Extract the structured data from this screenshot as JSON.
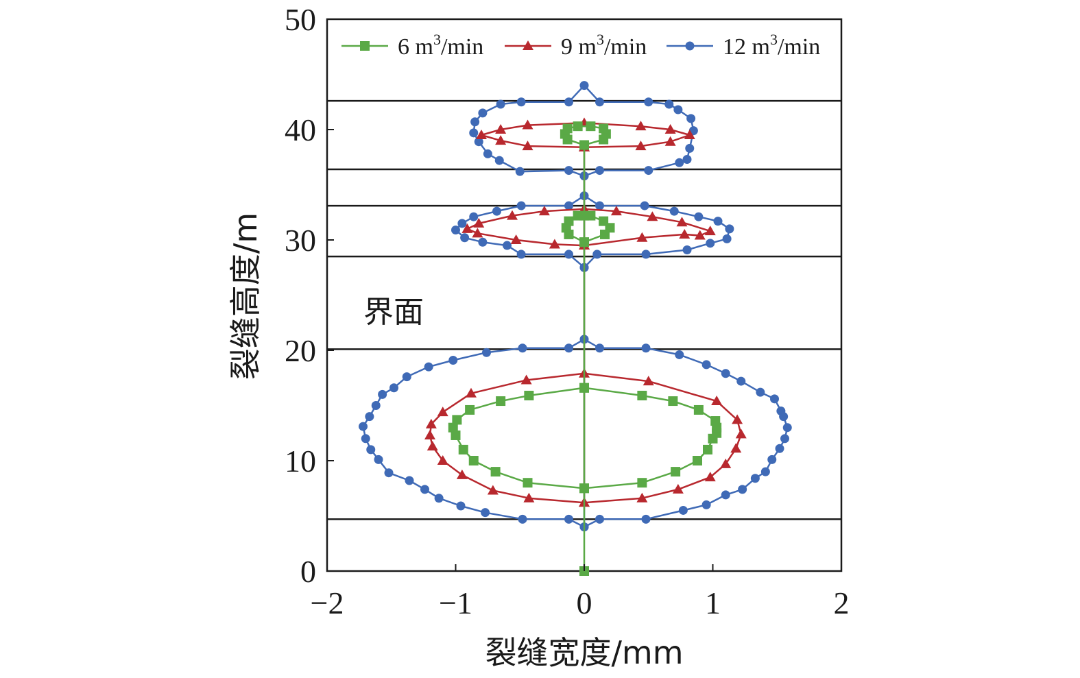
{
  "chart_data": {
    "type": "line",
    "xlabel": "裂缝宽度/mm",
    "ylabel": "裂缝高度/m",
    "xlim": [
      -2,
      2
    ],
    "ylim": [
      0,
      50
    ],
    "x_ticks": [
      "−2",
      "−1",
      "0",
      "1",
      "2"
    ],
    "y_ticks": [
      "0",
      "10",
      "20",
      "30",
      "40",
      "50"
    ],
    "x_tick_values": [
      -2,
      -1,
      0,
      1,
      2
    ],
    "y_tick_values": [
      0,
      10,
      20,
      30,
      40,
      50
    ],
    "grid": false,
    "legend_position": "top",
    "annotation": "界面",
    "interfaces": [
      4.7,
      20.1,
      28.5,
      33.1,
      36.4,
      42.6
    ],
    "series": [
      {
        "name": "6 m³/min",
        "legend_main": "6 m",
        "legend_sup": "3",
        "legend_tail": "/min",
        "color": "#5aa946",
        "marker": "square",
        "points": [
          [
            0,
            0
          ],
          [
            0,
            7.5
          ],
          [
            0.45,
            8.0
          ],
          [
            0.71,
            9.0
          ],
          [
            0.88,
            10.0
          ],
          [
            0.96,
            11.0
          ],
          [
            1.0,
            12.0
          ],
          [
            1.03,
            12.5
          ],
          [
            1.03,
            13.0
          ],
          [
            1.02,
            13.6
          ],
          [
            0.89,
            14.6
          ],
          [
            0.69,
            15.4
          ],
          [
            0.45,
            15.9
          ],
          [
            0,
            16.6
          ],
          [
            -0.43,
            15.9
          ],
          [
            -0.65,
            15.4
          ],
          [
            -0.89,
            14.6
          ],
          [
            -0.99,
            13.7
          ],
          [
            -1.02,
            13.0
          ],
          [
            -1.0,
            12.3
          ],
          [
            -0.94,
            11.0
          ],
          [
            -0.86,
            10.0
          ],
          [
            -0.69,
            9.0
          ],
          [
            -0.44,
            8.0
          ],
          [
            0,
            7.5
          ],
          [
            0,
            16.6
          ],
          [
            0,
            29.8
          ],
          [
            0.16,
            30.5
          ],
          [
            0.2,
            31.1
          ],
          [
            0.15,
            31.7
          ],
          [
            0.05,
            32.2
          ],
          [
            -0.05,
            32.2
          ],
          [
            -0.12,
            31.7
          ],
          [
            -0.14,
            31.1
          ],
          [
            -0.12,
            30.5
          ],
          [
            0,
            29.8
          ],
          [
            0,
            32.2
          ],
          [
            0,
            38.6
          ],
          [
            0.15,
            39.1
          ],
          [
            0.17,
            39.6
          ],
          [
            0.15,
            40.1
          ],
          [
            0.05,
            40.3
          ],
          [
            -0.05,
            40.3
          ],
          [
            -0.13,
            40.1
          ],
          [
            -0.15,
            39.6
          ],
          [
            -0.13,
            39.1
          ],
          [
            0,
            38.6
          ]
        ]
      },
      {
        "name": "9 m³/min",
        "legend_main": "9 m",
        "legend_sup": "3",
        "legend_tail": "/min",
        "color": "#b8282e",
        "marker": "triangle",
        "points": [
          [
            0,
            6.2
          ],
          [
            0.45,
            6.6
          ],
          [
            0.73,
            7.4
          ],
          [
            0.98,
            8.5
          ],
          [
            1.1,
            9.7
          ],
          [
            1.18,
            11.1
          ],
          [
            1.22,
            12.4
          ],
          [
            1.19,
            13.7
          ],
          [
            1.03,
            15.4
          ],
          [
            0.5,
            17.2
          ],
          [
            0,
            17.9
          ],
          [
            -0.45,
            17.3
          ],
          [
            -0.88,
            16.1
          ],
          [
            -1.1,
            14.4
          ],
          [
            -1.19,
            13.3
          ],
          [
            -1.2,
            12.3
          ],
          [
            -1.18,
            11.3
          ],
          [
            -1.1,
            10.0
          ],
          [
            -0.95,
            8.7
          ],
          [
            -0.71,
            7.3
          ],
          [
            -0.43,
            6.6
          ],
          [
            0,
            6.2
          ],
          [
            0,
            29.5
          ],
          [
            0.45,
            30.2
          ],
          [
            0.78,
            30.5
          ],
          [
            0.9,
            30.4
          ],
          [
            0.98,
            30.8
          ],
          [
            0.76,
            31.6
          ],
          [
            0.53,
            32.1
          ],
          [
            0.25,
            32.6
          ],
          [
            0,
            32.8
          ],
          [
            -0.31,
            32.6
          ],
          [
            -0.56,
            32.2
          ],
          [
            -0.82,
            31.5
          ],
          [
            -0.91,
            31.0
          ],
          [
            -0.83,
            30.6
          ],
          [
            -0.53,
            30.0
          ],
          [
            -0.23,
            29.6
          ],
          [
            0,
            29.5
          ],
          [
            0,
            38.4
          ],
          [
            0.44,
            38.5
          ],
          [
            0.67,
            38.9
          ],
          [
            0.82,
            39.5
          ],
          [
            0.67,
            40.0
          ],
          [
            0.44,
            40.3
          ],
          [
            0,
            40.6
          ],
          [
            -0.44,
            40.4
          ],
          [
            -0.65,
            40.0
          ],
          [
            -0.8,
            39.5
          ],
          [
            -0.65,
            39.0
          ],
          [
            -0.44,
            38.5
          ],
          [
            0,
            38.4
          ]
        ]
      },
      {
        "name": "12 m³/min",
        "legend_main": "12 m",
        "legend_sup": "3",
        "legend_tail": "/min",
        "color": "#3f6ab6",
        "marker": "circle",
        "points": [
          [
            0,
            4.0
          ],
          [
            0.12,
            4.7
          ],
          [
            0.48,
            4.7
          ],
          [
            0.77,
            5.5
          ],
          [
            0.95,
            6.0
          ],
          [
            1.1,
            6.9
          ],
          [
            1.23,
            7.4
          ],
          [
            1.33,
            8.4
          ],
          [
            1.41,
            9.0
          ],
          [
            1.46,
            10.1
          ],
          [
            1.52,
            11.1
          ],
          [
            1.56,
            12.0
          ],
          [
            1.58,
            13.0
          ],
          [
            1.55,
            14.0
          ],
          [
            1.53,
            14.5
          ],
          [
            1.48,
            15.6
          ],
          [
            1.37,
            16.2
          ],
          [
            1.22,
            17.2
          ],
          [
            1.1,
            17.9
          ],
          [
            0.95,
            18.7
          ],
          [
            0.74,
            19.6
          ],
          [
            0.48,
            20.2
          ],
          [
            0.12,
            20.2
          ],
          [
            0,
            21.0
          ],
          [
            -0.12,
            20.2
          ],
          [
            -0.48,
            20.2
          ],
          [
            -0.76,
            19.8
          ],
          [
            -1.02,
            19.1
          ],
          [
            -1.21,
            18.5
          ],
          [
            -1.38,
            17.6
          ],
          [
            -1.48,
            16.6
          ],
          [
            -1.57,
            16.0
          ],
          [
            -1.62,
            15.0
          ],
          [
            -1.67,
            14.0
          ],
          [
            -1.72,
            13.1
          ],
          [
            -1.7,
            12.0
          ],
          [
            -1.66,
            11.0
          ],
          [
            -1.6,
            10.1
          ],
          [
            -1.52,
            8.9
          ],
          [
            -1.36,
            8.2
          ],
          [
            -1.24,
            7.4
          ],
          [
            -1.13,
            6.6
          ],
          [
            -0.96,
            5.9
          ],
          [
            -0.77,
            5.3
          ],
          [
            -0.48,
            4.7
          ],
          [
            -0.12,
            4.7
          ],
          [
            0,
            4.0
          ],
          [
            0,
            27.5
          ],
          [
            0.1,
            28.7
          ],
          [
            0.48,
            28.7
          ],
          [
            0.8,
            29.1
          ],
          [
            0.98,
            29.7
          ],
          [
            1.11,
            30.1
          ],
          [
            1.13,
            31.0
          ],
          [
            1.04,
            31.7
          ],
          [
            0.89,
            32.1
          ],
          [
            0.7,
            32.6
          ],
          [
            0.47,
            33.1
          ],
          [
            0.12,
            33.1
          ],
          [
            0,
            34.0
          ],
          [
            -0.12,
            33.1
          ],
          [
            -0.49,
            33.1
          ],
          [
            -0.68,
            32.6
          ],
          [
            -0.86,
            32.1
          ],
          [
            -0.95,
            31.5
          ],
          [
            -1.0,
            30.9
          ],
          [
            -0.93,
            30.2
          ],
          [
            -0.79,
            29.8
          ],
          [
            -0.6,
            29.5
          ],
          [
            -0.49,
            28.7
          ],
          [
            -0.12,
            28.7
          ],
          [
            0,
            27.5
          ],
          [
            0,
            35.8
          ],
          [
            0.12,
            36.3
          ],
          [
            0.5,
            36.3
          ],
          [
            0.74,
            37.0
          ],
          [
            0.8,
            37.3
          ],
          [
            0.82,
            38.3
          ],
          [
            0.85,
            39.9
          ],
          [
            0.83,
            41.0
          ],
          [
            0.73,
            41.8
          ],
          [
            0.66,
            42.3
          ],
          [
            0.5,
            42.5
          ],
          [
            0.12,
            42.5
          ],
          [
            0,
            44.0
          ],
          [
            -0.12,
            42.5
          ],
          [
            -0.49,
            42.5
          ],
          [
            -0.65,
            42.3
          ],
          [
            -0.79,
            41.5
          ],
          [
            -0.85,
            40.7
          ],
          [
            -0.86,
            39.7
          ],
          [
            -0.82,
            38.9
          ],
          [
            -0.75,
            37.8
          ],
          [
            -0.66,
            37.2
          ],
          [
            -0.5,
            36.2
          ],
          [
            -0.12,
            36.3
          ],
          [
            0,
            35.8
          ]
        ]
      }
    ]
  }
}
